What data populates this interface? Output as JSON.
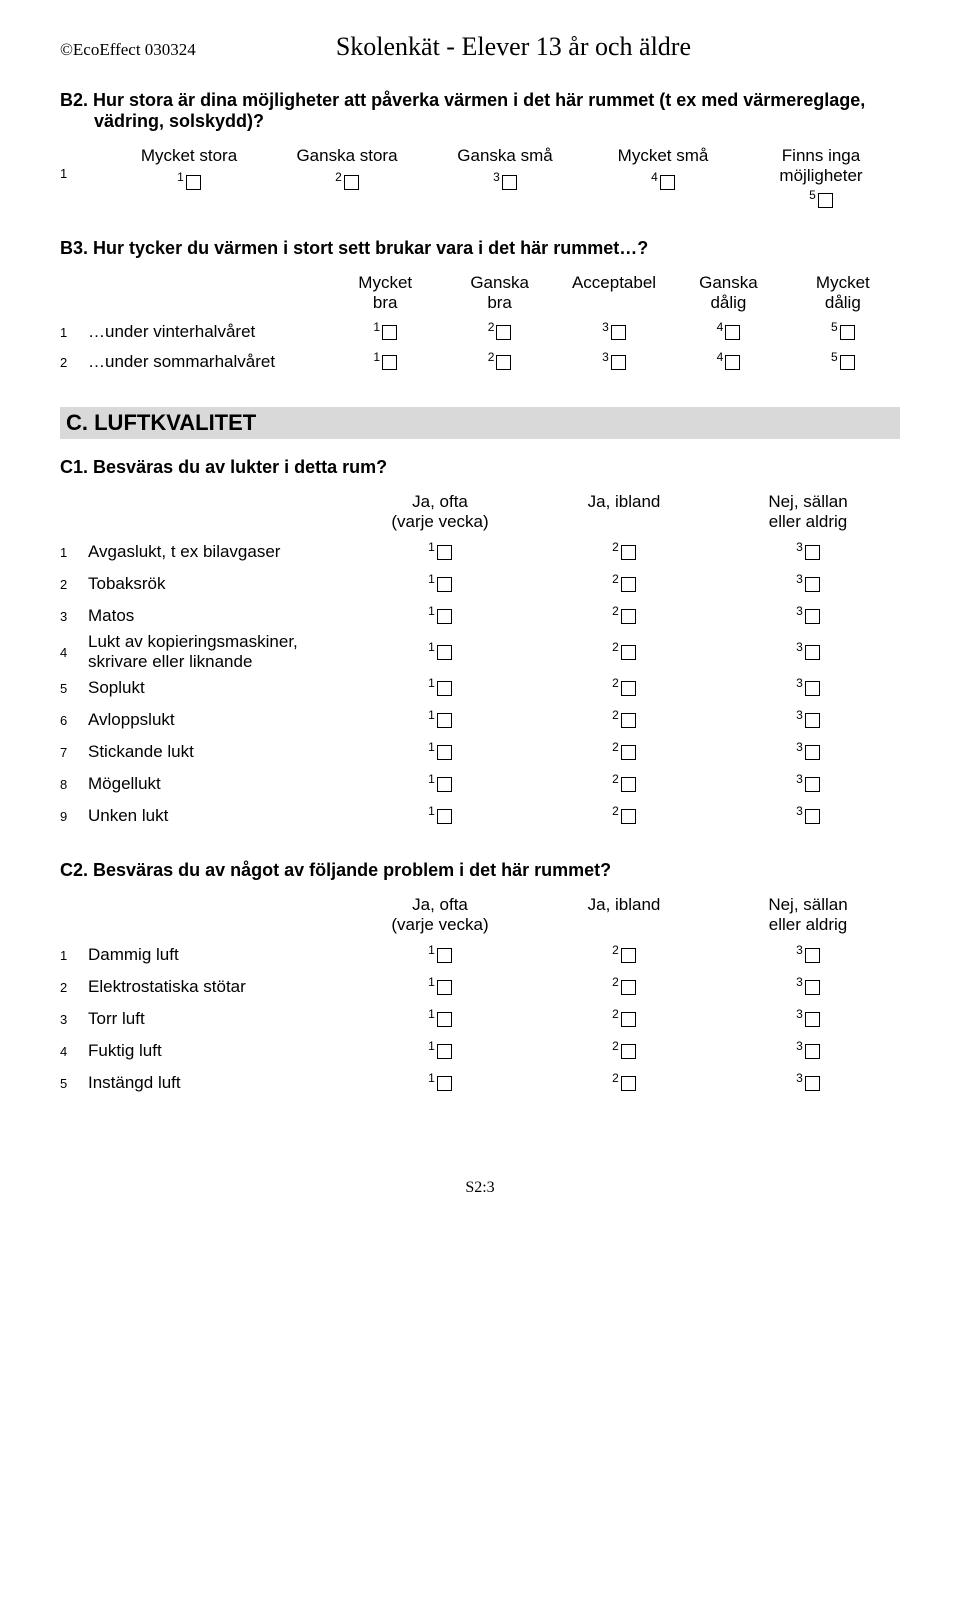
{
  "header": {
    "left": "©EcoEffect 030324",
    "title": "Skolenkät - Elever 13 år och äldre"
  },
  "b2": {
    "num": "B2.",
    "text": "Hur stora är dina möjligheter att påverka värmen i det här rummet (t ex med värmereglage, vädring, solskydd)?",
    "rowNum": "1",
    "options": [
      "Mycket stora",
      "Ganska stora",
      "Ganska små",
      "Mycket små",
      "Finns inga möjligheter"
    ]
  },
  "b3": {
    "num": "B3.",
    "text": "Hur tycker du värmen i stort sett brukar vara i det här rummet…?",
    "headers": [
      "Mycket bra",
      "Ganska bra",
      "Acceptabel",
      "Ganska dålig",
      "Mycket dålig"
    ],
    "rows": [
      {
        "n": "1",
        "label": "…under vinterhalvåret"
      },
      {
        "n": "2",
        "label": "…under sommarhalvåret"
      }
    ]
  },
  "sectionC": "C. LUFTKVALITET",
  "c1": {
    "num": "C1.",
    "text": "Besväras du av lukter i detta rum?",
    "headers": [
      "Ja, ofta (varje vecka)",
      "Ja, ibland",
      "Nej, sällan eller aldrig"
    ],
    "rows": [
      {
        "n": "1",
        "label": "Avgaslukt, t ex bilavgaser"
      },
      {
        "n": "2",
        "label": "Tobaksrök"
      },
      {
        "n": "3",
        "label": "Matos"
      },
      {
        "n": "4",
        "label": "Lukt av kopieringsmaskiner, skrivare eller liknande"
      },
      {
        "n": "5",
        "label": "Soplukt"
      },
      {
        "n": "6",
        "label": "Avloppslukt"
      },
      {
        "n": "7",
        "label": "Stickande lukt"
      },
      {
        "n": "8",
        "label": "Mögellukt"
      },
      {
        "n": "9",
        "label": "Unken lukt"
      }
    ]
  },
  "c2": {
    "num": "C2.",
    "text": "Besväras du av något av följande problem i det här rummet?",
    "headers": [
      "Ja, ofta (varje vecka)",
      "Ja, ibland",
      "Nej, sällan eller aldrig"
    ],
    "rows": [
      {
        "n": "1",
        "label": "Dammig luft"
      },
      {
        "n": "2",
        "label": "Elektrostatiska stötar"
      },
      {
        "n": "3",
        "label": "Torr luft"
      },
      {
        "n": "4",
        "label": "Fuktig luft"
      },
      {
        "n": "5",
        "label": "Instängd luft"
      }
    ]
  },
  "footer": "S2:3"
}
